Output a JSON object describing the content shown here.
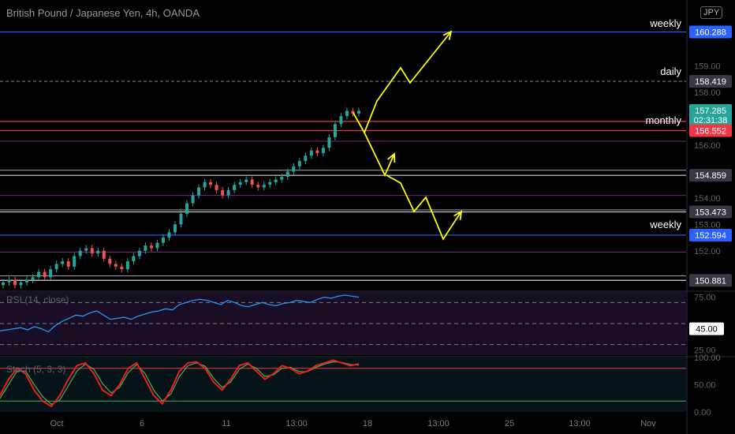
{
  "header": {
    "title": "British Pound / Japanese Yen, 4h, OANDA",
    "currency_badge": "JPY"
  },
  "colors": {
    "background": "#000000",
    "bull": "#26a69a",
    "bear": "#ef5350",
    "level_blue": "#2962ff",
    "level_red": "#f23645",
    "level_purple": "#9c27b0",
    "level_white": "#d1d4dc",
    "level_dashed": "#787b86",
    "arrow": "#ffff00",
    "rsi_line": "#2196f3",
    "stoch_k": "#e91e1e",
    "stoch_d": "#4caf50"
  },
  "chart_data": [
    {
      "type": "line",
      "title": "British Pound / Japanese Yen, 4h, OANDA",
      "note_marks": "candlestick price chart",
      "ylim": [
        150.5,
        161.5
      ],
      "y_ticks": [
        "150.881",
        "152.00",
        "152.594",
        "153.00",
        "153.473",
        "154.00",
        "154.859",
        "156.00",
        "156.552",
        "157.285",
        "158.00",
        "158.419",
        "159.00",
        "160.288"
      ],
      "x_ticks": [
        "Oct",
        "6",
        "11",
        "13:00",
        "18",
        "13:00",
        "25",
        "13:00",
        "Nov"
      ],
      "candles_close": [
        150.8,
        150.9,
        150.7,
        150.8,
        150.9,
        151.0,
        151.2,
        151.0,
        151.3,
        151.5,
        151.6,
        151.4,
        151.8,
        152.0,
        152.1,
        151.9,
        152.0,
        151.7,
        151.5,
        151.4,
        151.3,
        151.6,
        151.8,
        152.0,
        152.2,
        152.1,
        152.3,
        152.5,
        152.7,
        153.0,
        153.4,
        153.8,
        154.1,
        154.4,
        154.6,
        154.5,
        154.3,
        154.1,
        154.3,
        154.5,
        154.6,
        154.7,
        154.5,
        154.4,
        154.5,
        154.6,
        154.7,
        154.8,
        155.0,
        155.2,
        155.4,
        155.6,
        155.8,
        155.7,
        155.9,
        156.3,
        156.8,
        157.1,
        157.3,
        157.2,
        157.3
      ],
      "price_levels": [
        {
          "label": "weekly",
          "value": 160.288,
          "color": "#2962ff",
          "tag": "160.288"
        },
        {
          "label": "daily",
          "value": 158.419,
          "color": "#787b86",
          "tag": "158.419"
        },
        {
          "label": "",
          "value": 157.285,
          "color": "#26a69a",
          "tag": "157.285",
          "countdown": "02:31:38"
        },
        {
          "label": "monthly",
          "value": 156.552,
          "color": "#f23645",
          "tag": "156.552"
        },
        {
          "label": "",
          "value": 154.859,
          "color": "#d1d4dc",
          "tag": "154.859"
        },
        {
          "label": "",
          "value": 153.473,
          "color": "#d1d4dc",
          "tag": "153.473"
        },
        {
          "label": "weekly",
          "value": 152.594,
          "color": "#2962ff",
          "tag": "152.594"
        },
        {
          "label": "",
          "value": 150.881,
          "color": "#d1d4dc",
          "tag": "150.881"
        }
      ]
    },
    {
      "type": "line",
      "title": "RSI (14, close)",
      "ylim": [
        20,
        80
      ],
      "y_ticks": [
        "25.00",
        "45.00",
        "75.00"
      ],
      "bands": [
        30,
        50,
        70
      ],
      "values": [
        43,
        44,
        45,
        46,
        44,
        47,
        45,
        42,
        48,
        52,
        55,
        58,
        57,
        60,
        62,
        58,
        54,
        55,
        56,
        54,
        57,
        59,
        61,
        62,
        64,
        63,
        68,
        70,
        72,
        73,
        72,
        70,
        68,
        72,
        70,
        67,
        66,
        68,
        70,
        68,
        67,
        69,
        70,
        72,
        71,
        70,
        73,
        75,
        74,
        76,
        77,
        76,
        75
      ]
    },
    {
      "type": "line",
      "title": "Stoch (5, 3, 3)",
      "ylim": [
        0,
        100
      ],
      "y_ticks": [
        "0.00",
        "50.00",
        "100.00"
      ],
      "bands": [
        20,
        80
      ],
      "series": [
        {
          "values": [
            30,
            60,
            80,
            70,
            40,
            20,
            10,
            30,
            60,
            85,
            90,
            70,
            40,
            30,
            50,
            80,
            90,
            60,
            30,
            15,
            40,
            75,
            90,
            92,
            80,
            55,
            40,
            60,
            85,
            90,
            75,
            60,
            70,
            85,
            80,
            70,
            75,
            85,
            90,
            95,
            90,
            85,
            88
          ]
        },
        {
          "values": [
            25,
            50,
            75,
            75,
            50,
            28,
            14,
            22,
            48,
            75,
            88,
            78,
            52,
            35,
            45,
            72,
            87,
            70,
            40,
            20,
            33,
            65,
            85,
            90,
            84,
            62,
            45,
            55,
            78,
            88,
            80,
            65,
            68,
            80,
            82,
            74,
            74,
            82,
            88,
            92,
            91,
            87,
            86
          ]
        }
      ]
    }
  ],
  "annotations": {
    "level_labels": [
      "weekly",
      "daily",
      "monthly",
      "weekly"
    ],
    "countdown": "02:31:38"
  },
  "panes": {
    "rsi_label": "RSI (14, close)",
    "rsi_tag": "45.00",
    "stoch_label": "Stoch (5, 3, 3)"
  }
}
